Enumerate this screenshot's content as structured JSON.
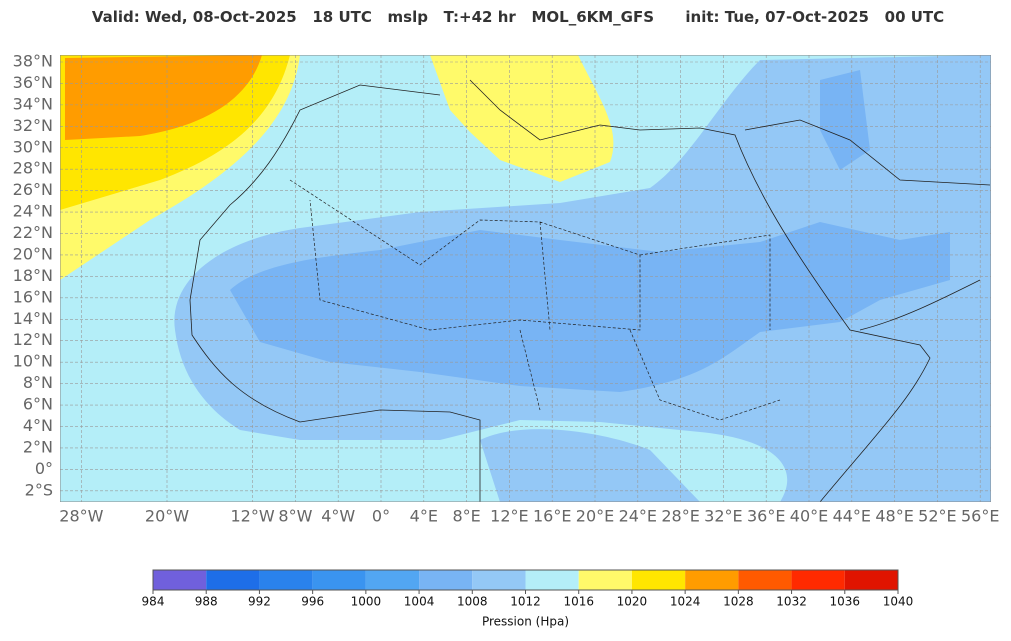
{
  "header": {
    "title": "Valid: Wed, 08-Oct-2025   18 UTC   mslp   T:+42 hr   MOL_6KM_GFS      init: Tue, 07-Oct-2025   00 UTC"
  },
  "map": {
    "lat_ticks": [
      {
        "value": 38,
        "label": "38°N"
      },
      {
        "value": 36,
        "label": "36°N"
      },
      {
        "value": 34,
        "label": "34°N"
      },
      {
        "value": 32,
        "label": "32°N"
      },
      {
        "value": 30,
        "label": "30°N"
      },
      {
        "value": 28,
        "label": "28°N"
      },
      {
        "value": 26,
        "label": "26°N"
      },
      {
        "value": 24,
        "label": "24°N"
      },
      {
        "value": 22,
        "label": "22°N"
      },
      {
        "value": 20,
        "label": "20°N"
      },
      {
        "value": 18,
        "label": "18°N"
      },
      {
        "value": 16,
        "label": "16°N"
      },
      {
        "value": 14,
        "label": "14°N"
      },
      {
        "value": 12,
        "label": "12°N"
      },
      {
        "value": 10,
        "label": "10°N"
      },
      {
        "value": 8,
        "label": "8°N"
      },
      {
        "value": 6,
        "label": "6°N"
      },
      {
        "value": 4,
        "label": "4°N"
      },
      {
        "value": 2,
        "label": "2°N"
      },
      {
        "value": 0,
        "label": "0°"
      },
      {
        "value": -2,
        "label": "2°S"
      }
    ],
    "lon_ticks": [
      {
        "value": -28,
        "label": "28°W"
      },
      {
        "value": -20,
        "label": "20°W"
      },
      {
        "value": -12,
        "label": "12°W"
      },
      {
        "value": -8,
        "label": "8°W"
      },
      {
        "value": -4,
        "label": "4°W"
      },
      {
        "value": 0,
        "label": "0°"
      },
      {
        "value": 4,
        "label": "4°E"
      },
      {
        "value": 8,
        "label": "8°E"
      },
      {
        "value": 12,
        "label": "12°E"
      },
      {
        "value": 16,
        "label": "16°E"
      },
      {
        "value": 20,
        "label": "20°E"
      },
      {
        "value": 24,
        "label": "24°E"
      },
      {
        "value": 28,
        "label": "28°E"
      },
      {
        "value": 32,
        "label": "32°E"
      },
      {
        "value": 36,
        "label": "36°E"
      },
      {
        "value": 40,
        "label": "40°E"
      },
      {
        "value": 44,
        "label": "44°E"
      },
      {
        "value": 48,
        "label": "48°E"
      },
      {
        "value": 52,
        "label": "52°E"
      },
      {
        "value": 56,
        "label": "56°E"
      }
    ]
  },
  "colorbar": {
    "ticks": [
      984,
      988,
      992,
      996,
      1000,
      1004,
      1008,
      1012,
      1016,
      1020,
      1024,
      1028,
      1032,
      1036,
      1040
    ],
    "colors": [
      "#7060dc",
      "#1e6ee8",
      "#2a82ec",
      "#3a94f0",
      "#52a6f2",
      "#78b4f4",
      "#94c8f6",
      "#b4eef8",
      "#fffa6a",
      "#ffe600",
      "#ff9c00",
      "#ff5a00",
      "#ff2a00",
      "#e01400"
    ],
    "label": "Pression (Hpa)"
  }
}
